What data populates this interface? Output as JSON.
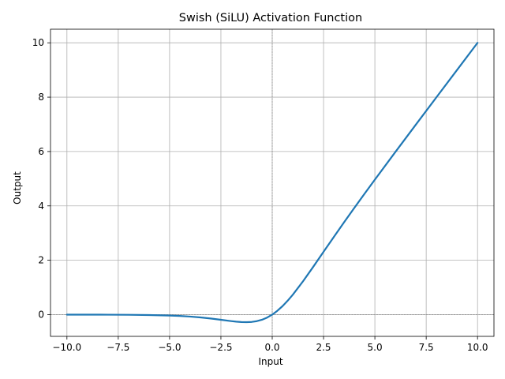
{
  "chart_data": {
    "type": "line",
    "title": "Swish (SiLU) Activation Function",
    "xlabel": "Input",
    "ylabel": "Output",
    "xlim": [
      -10.8,
      10.8
    ],
    "ylim": [
      -0.8,
      10.5
    ],
    "xticks": [
      -10,
      -7.5,
      -5,
      -2.5,
      0,
      2.5,
      5,
      7.5,
      10
    ],
    "xtick_labels": [
      "−10.0",
      "−7.5",
      "−5.0",
      "−2.5",
      "0.0",
      "2.5",
      "5.0",
      "7.5",
      "10.0"
    ],
    "yticks": [
      0,
      2,
      4,
      6,
      8,
      10
    ],
    "ytick_labels": [
      "0",
      "2",
      "4",
      "6",
      "8",
      "10"
    ],
    "grid": true,
    "reference_lines": {
      "x": 0,
      "y": 0
    },
    "series": [
      {
        "color": "#1f77b4",
        "x": [
          -10,
          -9,
          -8,
          -7,
          -6,
          -5,
          -4.5,
          -4,
          -3.5,
          -3,
          -2.5,
          -2,
          -1.75,
          -1.5,
          -1.25,
          -1,
          -0.75,
          -0.5,
          -0.25,
          0,
          0.25,
          0.5,
          0.75,
          1,
          1.5,
          2,
          2.5,
          3,
          3.5,
          4,
          4.5,
          5,
          6,
          7,
          8,
          9,
          10
        ],
        "y": [
          -0.0005,
          -0.0011,
          -0.0027,
          -0.0064,
          -0.0148,
          -0.0335,
          -0.0495,
          -0.0719,
          -0.1026,
          -0.1423,
          -0.1896,
          -0.2384,
          -0.2596,
          -0.2736,
          -0.2779,
          -0.2689,
          -0.2403,
          -0.1888,
          -0.1094,
          0,
          0.1406,
          0.3112,
          0.5097,
          0.7311,
          1.2264,
          1.7616,
          2.3104,
          2.8577,
          3.3974,
          3.9281,
          4.4505,
          4.9665,
          5.9852,
          6.9936,
          7.9973,
          8.9989,
          9.9995
        ]
      }
    ]
  }
}
